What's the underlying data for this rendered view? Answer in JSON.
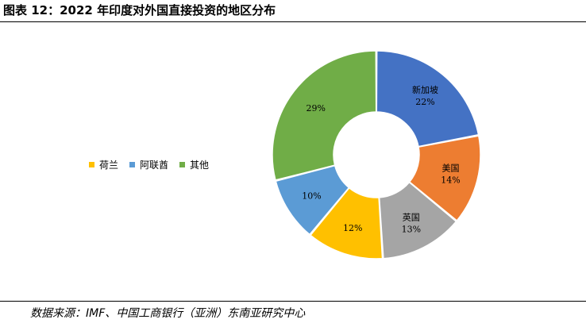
{
  "figure": {
    "title": "图表 12：2022 年印度对外国直接投资的地区分布",
    "source": "数据来源：IMF、中国工商银行（亚洲）东南亚研究中心"
  },
  "chart_data": {
    "type": "pie",
    "donut": true,
    "start_angle_deg": 0,
    "direction": "clockwise",
    "slices": [
      {
        "label": "新加坡",
        "pct_label": "22%",
        "value": 22,
        "color": "#4472C4"
      },
      {
        "label": "美国",
        "pct_label": "14%",
        "value": 14,
        "color": "#ED7D31"
      },
      {
        "label": "英国",
        "pct_label": "13%",
        "value": 13,
        "color": "#A5A5A5"
      },
      {
        "label": "",
        "pct_label": "12%",
        "value": 12,
        "color": "#FFC000"
      },
      {
        "label": "",
        "pct_label": "10%",
        "value": 10,
        "color": "#5B9BD5"
      },
      {
        "label": "",
        "pct_label": "29%",
        "value": 29,
        "color": "#70AD47"
      }
    ],
    "legend": {
      "position": "left",
      "entries": [
        {
          "name": "荷兰",
          "color": "#FFC000"
        },
        {
          "name": "阿联酋",
          "color": "#5B9BD5"
        },
        {
          "name": "其他",
          "color": "#70AD47"
        }
      ]
    }
  }
}
